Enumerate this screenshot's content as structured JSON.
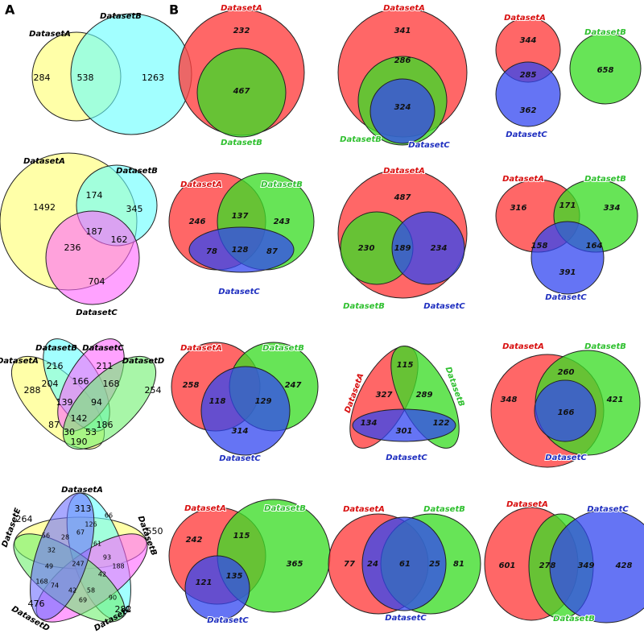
{
  "panel_a": {
    "label": "A",
    "diagrams": [
      {
        "sets": [
          "DatasetA",
          "DatasetB"
        ],
        "counts": [
          284,
          538,
          1263
        ]
      },
      {
        "sets": [
          "DatasetA",
          "DatasetB",
          "DatasetC"
        ],
        "counts": [
          1492,
          174,
          345,
          187,
          162,
          236,
          704
        ]
      },
      {
        "sets": [
          "DatasetA",
          "DatasetB",
          "DatasetC",
          "DatasetD"
        ],
        "counts": [
          288,
          216,
          211,
          254,
          204,
          166,
          168,
          139,
          94,
          87,
          142,
          186,
          30,
          53,
          190
        ]
      },
      {
        "sets": [
          "DatasetA",
          "DatasetB",
          "DatasetC",
          "DatasetD",
          "DatasetE"
        ],
        "counts": [
          313,
          550,
          282,
          476,
          264,
          126,
          67,
          28,
          56,
          32,
          61,
          93,
          188,
          49,
          247,
          42,
          168,
          74,
          42,
          58,
          69,
          90,
          66
        ]
      }
    ]
  },
  "panel_b": {
    "label": "B",
    "diagrams": [
      {
        "sets": [
          "DatasetA",
          "DatasetB"
        ],
        "counts": [
          232,
          467
        ]
      },
      {
        "sets": [
          "DatasetA",
          "DatasetB",
          "DatasetC"
        ],
        "counts": [
          341,
          286,
          324
        ]
      },
      {
        "sets": [
          "DatasetA",
          "DatasetB",
          "DatasetC"
        ],
        "counts": [
          344,
          285,
          362,
          658
        ]
      },
      {
        "sets": [
          "DatasetA",
          "DatasetB",
          "DatasetC"
        ],
        "counts": [
          246,
          137,
          243,
          78,
          128,
          87
        ]
      },
      {
        "sets": [
          "DatasetA",
          "DatasetB",
          "DatasetC"
        ],
        "counts": [
          487,
          230,
          189,
          234
        ]
      },
      {
        "sets": [
          "DatasetA",
          "DatasetB",
          "DatasetC"
        ],
        "counts": [
          316,
          171,
          334,
          158,
          164,
          391
        ]
      },
      {
        "sets": [
          "DatasetA",
          "DatasetB",
          "DatasetC"
        ],
        "counts": [
          258,
          118,
          129,
          247,
          314
        ]
      },
      {
        "sets": [
          "DatasetA",
          "DatasetB",
          "DatasetC"
        ],
        "counts": [
          115,
          327,
          289,
          134,
          301,
          122
        ]
      },
      {
        "sets": [
          "DatasetA",
          "DatasetB",
          "DatasetC"
        ],
        "counts": [
          348,
          260,
          421,
          166
        ]
      },
      {
        "sets": [
          "DatasetA",
          "DatasetB",
          "DatasetC"
        ],
        "counts": [
          242,
          115,
          365,
          121,
          135
        ]
      },
      {
        "sets": [
          "DatasetA",
          "DatasetB",
          "DatasetC"
        ],
        "counts": [
          77,
          24,
          61,
          25,
          81
        ]
      },
      {
        "sets": [
          "DatasetA",
          "DatasetB",
          "DatasetC"
        ],
        "counts": [
          601,
          278,
          349,
          428
        ]
      }
    ]
  }
}
